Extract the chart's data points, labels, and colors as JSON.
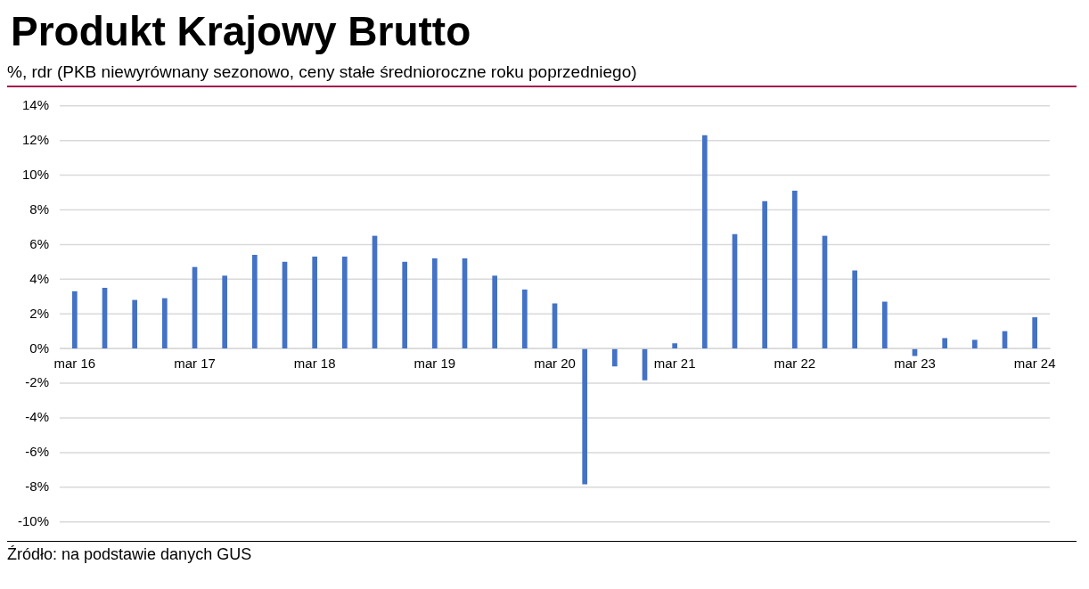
{
  "chart_data": {
    "type": "bar",
    "title": "Produkt Krajowy Brutto",
    "subtitle": "%, rdr (PKB niewyrównany sezonowo, ceny stałe średnioroczne roku poprzedniego)",
    "categories": [
      "mar 16",
      null,
      null,
      null,
      "mar 17",
      null,
      null,
      null,
      "mar 18",
      null,
      null,
      null,
      "mar 19",
      null,
      null,
      null,
      "mar 20",
      null,
      null,
      null,
      "mar 21",
      null,
      null,
      null,
      "mar 22",
      null,
      null,
      null,
      "mar 23",
      null,
      null,
      null,
      "mar 24"
    ],
    "values": [
      3.3,
      3.5,
      2.8,
      2.9,
      4.7,
      4.2,
      5.4,
      5.0,
      5.3,
      5.3,
      6.5,
      5.0,
      5.2,
      5.2,
      4.2,
      3.4,
      2.6,
      -7.8,
      -1.0,
      -1.8,
      0.3,
      12.3,
      6.6,
      8.5,
      9.1,
      6.5,
      4.5,
      2.7,
      -0.4,
      0.6,
      0.5,
      1.0,
      1.8
    ],
    "color": "#4472c4",
    "ylim": [
      -10,
      14
    ],
    "yticks": [
      {
        "value": -10,
        "label": "-10%"
      },
      {
        "value": -8,
        "label": "-8%"
      },
      {
        "value": -6,
        "label": "-6%"
      },
      {
        "value": -4,
        "label": "-4%"
      },
      {
        "value": -2,
        "label": "-2%"
      },
      {
        "value": 0,
        "label": "0%"
      },
      {
        "value": 2,
        "label": "2%"
      },
      {
        "value": 4,
        "label": "4%"
      },
      {
        "value": 6,
        "label": "6%"
      },
      {
        "value": 8,
        "label": "8%"
      },
      {
        "value": 10,
        "label": "10%"
      },
      {
        "value": 12,
        "label": "12%"
      },
      {
        "value": 14,
        "label": "14%"
      }
    ],
    "grid": "y",
    "annotations": [
      "Źródło: na podstawie danych GUS"
    ]
  }
}
